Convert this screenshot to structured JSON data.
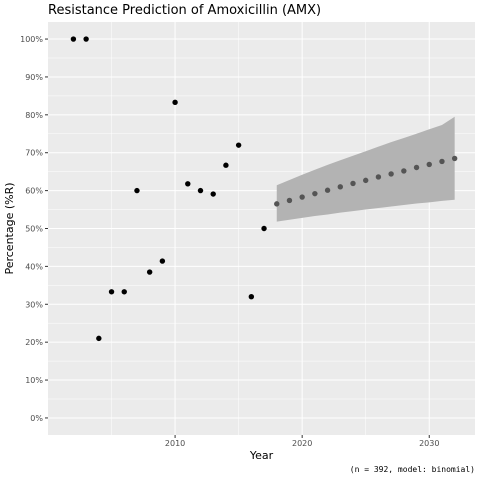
{
  "chart_data": {
    "type": "scatter",
    "title": "Resistance Prediction of Amoxicillin (AMX)",
    "xlabel": "Year",
    "ylabel": "Percentage (%R)",
    "caption": "(n = 392, model: binomial)",
    "xlim": [
      2000.0,
      2033.6
    ],
    "ylim": [
      -0.045,
      1.045
    ],
    "x_ticks": [
      2010,
      2020,
      2030
    ],
    "y_ticks": [
      0,
      0.1,
      0.2,
      0.3,
      0.4,
      0.5,
      0.6,
      0.7,
      0.8,
      0.9,
      1.0
    ],
    "y_tick_labels": [
      "0%",
      "10%",
      "20%",
      "30%",
      "40%",
      "50%",
      "60%",
      "70%",
      "80%",
      "90%",
      "100%"
    ],
    "grid": true,
    "observed": {
      "x": [
        2002,
        2003,
        2004,
        2005,
        2006,
        2007,
        2008,
        2009,
        2010,
        2011,
        2012,
        2013,
        2014,
        2015,
        2016,
        2017
      ],
      "y": [
        1.0,
        1.0,
        0.21,
        0.333,
        0.333,
        0.6,
        0.385,
        0.414,
        0.833,
        0.618,
        0.6,
        0.591,
        0.667,
        0.72,
        0.32,
        0.5
      ],
      "color": "#000000"
    },
    "predicted": {
      "x": [
        2018,
        2019,
        2020,
        2021,
        2022,
        2023,
        2024,
        2025,
        2026,
        2027,
        2028,
        2029,
        2030,
        2031,
        2032
      ],
      "y": [
        0.565,
        0.574,
        0.583,
        0.592,
        0.601,
        0.61,
        0.619,
        0.627,
        0.636,
        0.644,
        0.652,
        0.661,
        0.669,
        0.677,
        0.685
      ],
      "lower": [
        0.518,
        0.523,
        0.528,
        0.533,
        0.537,
        0.542,
        0.546,
        0.55,
        0.554,
        0.558,
        0.562,
        0.566,
        0.569,
        0.573,
        0.576
      ],
      "upper": [
        0.614,
        0.628,
        0.642,
        0.655,
        0.668,
        0.68,
        0.692,
        0.704,
        0.716,
        0.728,
        0.739,
        0.75,
        0.762,
        0.773,
        0.795
      ],
      "color": "#555555",
      "band_color": "#b3b3b3"
    },
    "panel_background": "#ebebeb",
    "grid_color": "#ffffff"
  }
}
